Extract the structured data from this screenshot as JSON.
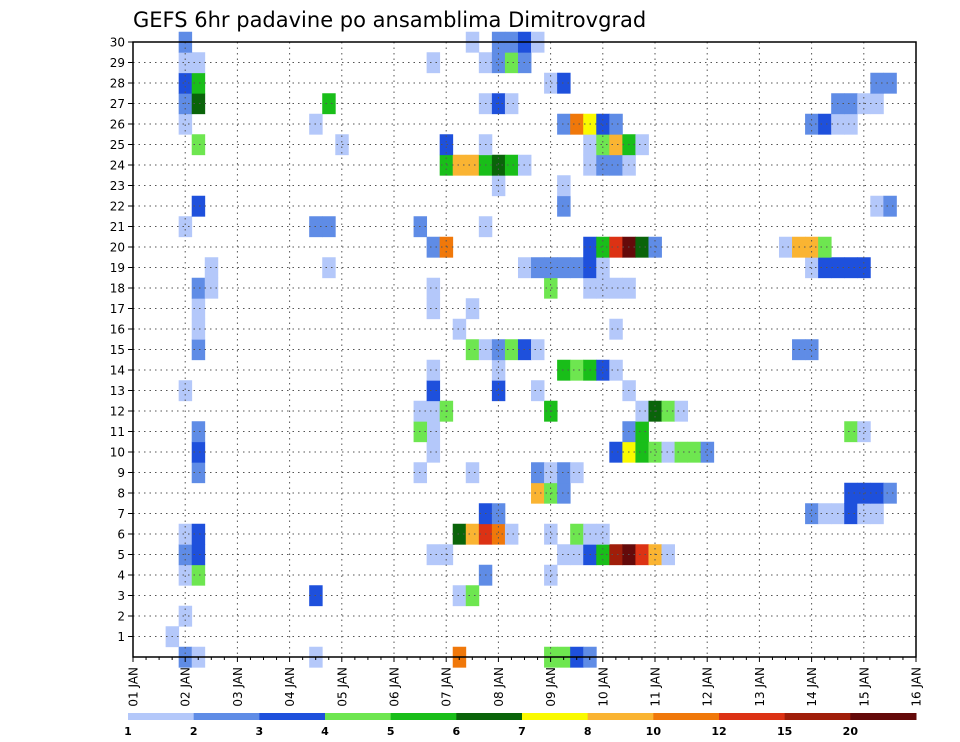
{
  "chart_data": {
    "type": "heatmap",
    "title": "GEFS 6hr padavine po ansamblima Dimitrovgrad",
    "xlabel": "",
    "ylabel": "",
    "x_tick_labels": [
      "01 JAN",
      "02 JAN",
      "03 JAN",
      "04 JAN",
      "05 JAN",
      "06 JAN",
      "07 JAN",
      "08 JAN",
      "09 JAN",
      "10 JAN",
      "11 JAN",
      "12 JAN",
      "13 JAN",
      "14 JAN",
      "15 JAN",
      "16 JAN"
    ],
    "y_tick_labels": [
      "1",
      "2",
      "3",
      "4",
      "5",
      "6",
      "7",
      "8",
      "9",
      "10",
      "11",
      "12",
      "13",
      "14",
      "15",
      "16",
      "17",
      "18",
      "19",
      "20",
      "21",
      "22",
      "23",
      "24",
      "25",
      "26",
      "27",
      "28",
      "29",
      "30"
    ],
    "x_range_steps_6h": [
      0,
      60
    ],
    "y_range_members": [
      0,
      30
    ],
    "grid": true,
    "colorbar": {
      "position": "bottom",
      "colors": [
        "#b4c8fa",
        "#5f8ce6",
        "#1e50dc",
        "#6ee650",
        "#19be19",
        "#0a640a",
        "#fafa00",
        "#fab432",
        "#f0780a",
        "#dc3214",
        "#a01e0a",
        "#640a0a"
      ],
      "labels": [
        "1",
        "2",
        "3",
        "4",
        "5",
        "6",
        "7",
        "8",
        "10",
        "12",
        "15",
        "20"
      ]
    },
    "cell_value_unit": "color class index 1-12 (see colorbar)",
    "cells": [
      [
        4,
        0,
        2
      ],
      [
        5,
        0,
        1
      ],
      [
        14,
        0,
        1
      ],
      [
        25,
        0,
        9
      ],
      [
        32,
        0,
        4
      ],
      [
        33,
        0,
        4
      ],
      [
        34,
        0,
        3
      ],
      [
        35,
        0,
        2
      ],
      [
        3,
        1,
        1
      ],
      [
        4,
        2,
        1
      ],
      [
        14,
        3,
        3
      ],
      [
        25,
        3,
        1
      ],
      [
        26,
        3,
        4
      ],
      [
        4,
        4,
        1
      ],
      [
        5,
        4,
        4
      ],
      [
        27,
        4,
        2
      ],
      [
        32,
        4,
        1
      ],
      [
        4,
        5,
        2
      ],
      [
        5,
        5,
        3
      ],
      [
        23,
        5,
        1
      ],
      [
        24,
        5,
        1
      ],
      [
        33,
        5,
        1
      ],
      [
        34,
        5,
        1
      ],
      [
        35,
        5,
        3
      ],
      [
        36,
        5,
        5
      ],
      [
        37,
        5,
        11
      ],
      [
        38,
        5,
        12
      ],
      [
        39,
        5,
        10
      ],
      [
        40,
        5,
        8
      ],
      [
        41,
        5,
        1
      ],
      [
        4,
        6,
        1
      ],
      [
        5,
        6,
        3
      ],
      [
        25,
        6,
        6
      ],
      [
        26,
        6,
        8
      ],
      [
        27,
        6,
        10
      ],
      [
        28,
        6,
        9
      ],
      [
        29,
        6,
        1
      ],
      [
        32,
        6,
        1
      ],
      [
        34,
        6,
        4
      ],
      [
        35,
        6,
        1
      ],
      [
        36,
        6,
        1
      ],
      [
        27,
        7,
        3
      ],
      [
        28,
        7,
        2
      ],
      [
        52,
        7,
        2
      ],
      [
        53,
        7,
        1
      ],
      [
        54,
        7,
        1
      ],
      [
        55,
        7,
        3
      ],
      [
        56,
        7,
        1
      ],
      [
        57,
        7,
        1
      ],
      [
        31,
        8,
        8
      ],
      [
        32,
        8,
        4
      ],
      [
        33,
        8,
        2
      ],
      [
        55,
        8,
        3
      ],
      [
        56,
        8,
        3
      ],
      [
        57,
        8,
        3
      ],
      [
        58,
        8,
        2
      ],
      [
        5,
        9,
        2
      ],
      [
        22,
        9,
        1
      ],
      [
        26,
        9,
        1
      ],
      [
        31,
        9,
        2
      ],
      [
        32,
        9,
        1
      ],
      [
        33,
        9,
        2
      ],
      [
        34,
        9,
        1
      ],
      [
        5,
        10,
        3
      ],
      [
        23,
        10,
        1
      ],
      [
        37,
        10,
        3
      ],
      [
        38,
        10,
        7
      ],
      [
        39,
        10,
        5
      ],
      [
        40,
        10,
        4
      ],
      [
        41,
        10,
        1
      ],
      [
        42,
        10,
        4
      ],
      [
        43,
        10,
        4
      ],
      [
        44,
        10,
        2
      ],
      [
        5,
        11,
        2
      ],
      [
        23,
        11,
        1
      ],
      [
        22,
        11,
        4
      ],
      [
        38,
        11,
        2
      ],
      [
        39,
        11,
        5
      ],
      [
        55,
        11,
        4
      ],
      [
        56,
        11,
        1
      ],
      [
        23,
        12,
        1
      ],
      [
        22,
        12,
        1
      ],
      [
        24,
        12,
        4
      ],
      [
        32,
        12,
        5
      ],
      [
        39,
        12,
        1
      ],
      [
        40,
        12,
        6
      ],
      [
        41,
        12,
        4
      ],
      [
        42,
        12,
        1
      ],
      [
        4,
        13,
        1
      ],
      [
        23,
        13,
        3
      ],
      [
        28,
        13,
        3
      ],
      [
        31,
        13,
        1
      ],
      [
        38,
        13,
        1
      ],
      [
        23,
        14,
        1
      ],
      [
        28,
        14,
        1
      ],
      [
        33,
        14,
        5
      ],
      [
        34,
        14,
        4
      ],
      [
        35,
        14,
        5
      ],
      [
        36,
        14,
        3
      ],
      [
        37,
        14,
        1
      ],
      [
        5,
        15,
        2
      ],
      [
        26,
        15,
        4
      ],
      [
        27,
        15,
        1
      ],
      [
        28,
        15,
        2
      ],
      [
        29,
        15,
        4
      ],
      [
        30,
        15,
        3
      ],
      [
        31,
        15,
        1
      ],
      [
        51,
        15,
        2
      ],
      [
        52,
        15,
        2
      ],
      [
        5,
        16,
        1
      ],
      [
        25,
        16,
        1
      ],
      [
        37,
        16,
        1
      ],
      [
        5,
        17,
        1
      ],
      [
        23,
        17,
        1
      ],
      [
        26,
        17,
        1
      ],
      [
        5,
        18,
        2
      ],
      [
        6,
        18,
        1
      ],
      [
        23,
        18,
        1
      ],
      [
        32,
        18,
        4
      ],
      [
        35,
        18,
        1
      ],
      [
        36,
        18,
        1
      ],
      [
        37,
        18,
        1
      ],
      [
        38,
        18,
        1
      ],
      [
        6,
        19,
        1
      ],
      [
        15,
        19,
        1
      ],
      [
        30,
        19,
        1
      ],
      [
        31,
        19,
        2
      ],
      [
        32,
        19,
        2
      ],
      [
        33,
        19,
        2
      ],
      [
        34,
        19,
        2
      ],
      [
        35,
        19,
        3
      ],
      [
        36,
        19,
        1
      ],
      [
        52,
        19,
        1
      ],
      [
        53,
        19,
        3
      ],
      [
        54,
        19,
        3
      ],
      [
        55,
        19,
        3
      ],
      [
        56,
        19,
        3
      ],
      [
        23,
        20,
        2
      ],
      [
        24,
        20,
        9
      ],
      [
        35,
        20,
        3
      ],
      [
        36,
        20,
        5
      ],
      [
        37,
        20,
        10
      ],
      [
        38,
        20,
        12
      ],
      [
        39,
        20,
        6
      ],
      [
        40,
        20,
        2
      ],
      [
        50,
        20,
        1
      ],
      [
        51,
        20,
        8
      ],
      [
        52,
        20,
        8
      ],
      [
        53,
        20,
        4
      ],
      [
        4,
        21,
        1
      ],
      [
        14,
        21,
        2
      ],
      [
        15,
        21,
        2
      ],
      [
        22,
        21,
        2
      ],
      [
        27,
        21,
        1
      ],
      [
        5,
        22,
        3
      ],
      [
        33,
        22,
        2
      ],
      [
        57,
        22,
        1
      ],
      [
        58,
        22,
        2
      ],
      [
        28,
        23,
        1
      ],
      [
        33,
        23,
        1
      ],
      [
        24,
        24,
        5
      ],
      [
        25,
        24,
        8
      ],
      [
        26,
        24,
        8
      ],
      [
        27,
        24,
        5
      ],
      [
        28,
        24,
        6
      ],
      [
        29,
        24,
        5
      ],
      [
        30,
        24,
        1
      ],
      [
        35,
        24,
        1
      ],
      [
        36,
        24,
        2
      ],
      [
        37,
        24,
        2
      ],
      [
        38,
        24,
        1
      ],
      [
        5,
        25,
        4
      ],
      [
        16,
        25,
        1
      ],
      [
        24,
        25,
        3
      ],
      [
        27,
        25,
        1
      ],
      [
        35,
        25,
        1
      ],
      [
        36,
        25,
        4
      ],
      [
        37,
        25,
        8
      ],
      [
        38,
        25,
        5
      ],
      [
        39,
        25,
        1
      ],
      [
        4,
        26,
        1
      ],
      [
        14,
        26,
        1
      ],
      [
        33,
        26,
        2
      ],
      [
        34,
        26,
        9
      ],
      [
        35,
        26,
        7
      ],
      [
        36,
        26,
        3
      ],
      [
        37,
        26,
        2
      ],
      [
        52,
        26,
        2
      ],
      [
        53,
        26,
        3
      ],
      [
        54,
        26,
        1
      ],
      [
        55,
        26,
        1
      ],
      [
        4,
        27,
        2
      ],
      [
        5,
        27,
        6
      ],
      [
        15,
        27,
        5
      ],
      [
        27,
        27,
        1
      ],
      [
        28,
        27,
        3
      ],
      [
        29,
        27,
        1
      ],
      [
        54,
        27,
        2
      ],
      [
        55,
        27,
        2
      ],
      [
        56,
        27,
        1
      ],
      [
        57,
        27,
        1
      ],
      [
        4,
        28,
        3
      ],
      [
        5,
        28,
        5
      ],
      [
        32,
        28,
        1
      ],
      [
        33,
        28,
        3
      ],
      [
        57,
        28,
        2
      ],
      [
        58,
        28,
        2
      ],
      [
        4,
        29,
        1
      ],
      [
        5,
        29,
        1
      ],
      [
        23,
        29,
        1
      ],
      [
        27,
        29,
        1
      ],
      [
        28,
        29,
        2
      ],
      [
        29,
        29,
        4
      ],
      [
        30,
        29,
        2
      ],
      [
        4,
        30,
        2
      ],
      [
        26,
        30,
        1
      ],
      [
        28,
        30,
        2
      ],
      [
        29,
        30,
        2
      ],
      [
        30,
        30,
        3
      ],
      [
        31,
        30,
        1
      ]
    ]
  }
}
